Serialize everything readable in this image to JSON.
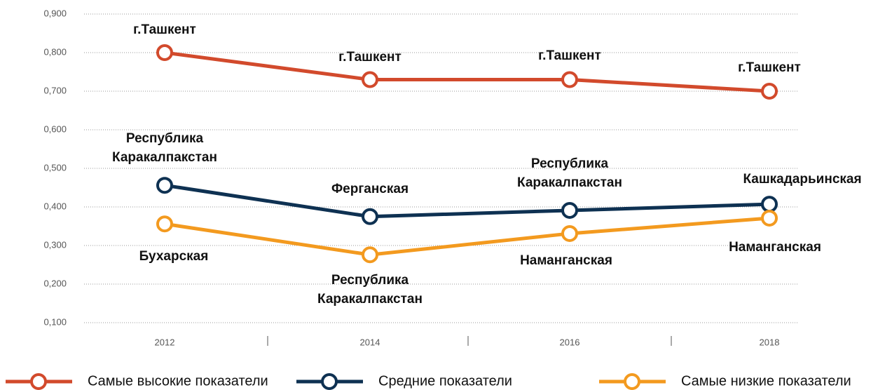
{
  "chart_data": {
    "type": "line",
    "categories": [
      "2012",
      "2014",
      "2016",
      "2018"
    ],
    "series": [
      {
        "name": "Самые высокие показатели",
        "color": "#d24a2c",
        "values": [
          0.8,
          0.73,
          0.73,
          0.7
        ],
        "point_labels": [
          "г.Ташкент",
          "г.Ташкент",
          "г.Ташкент",
          "г.Ташкент"
        ]
      },
      {
        "name": "Средние показатели",
        "color": "#0e3152",
        "values": [
          0.456,
          0.375,
          0.391,
          0.407
        ],
        "point_labels": [
          [
            "Республика",
            "Каракалпакстан"
          ],
          "Ферганская",
          [
            "Республика",
            "Каракалпакстан"
          ],
          "Кашкадарьинская"
        ]
      },
      {
        "name": "Самые низкие показатели",
        "color": "#f39a1f",
        "values": [
          0.356,
          0.276,
          0.331,
          0.371
        ],
        "point_labels": [
          "Бухарская",
          [
            "Республика",
            "Каракалпакстан"
          ],
          "Наманганская",
          "Наманганская"
        ]
      }
    ],
    "ylim": [
      0.1,
      0.9
    ],
    "yticks": [
      {
        "value": 0.1,
        "label": "0,100"
      },
      {
        "value": 0.2,
        "label": "0,200"
      },
      {
        "value": 0.3,
        "label": "0,300"
      },
      {
        "value": 0.4,
        "label": "0,400"
      },
      {
        "value": 0.5,
        "label": "0,500"
      },
      {
        "value": 0.6,
        "label": "0,600"
      },
      {
        "value": 0.7,
        "label": "0,700"
      },
      {
        "value": 0.8,
        "label": "0,800"
      },
      {
        "value": 0.9,
        "label": "0,900"
      }
    ],
    "grid": true
  }
}
